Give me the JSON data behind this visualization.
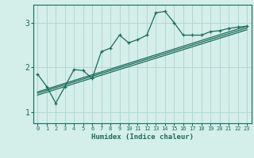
{
  "xlabel": "Humidex (Indice chaleur)",
  "background_color": "#d4eeea",
  "grid_color": "#b0d8d4",
  "line_color": "#1a6b5a",
  "xlim": [
    -0.5,
    23.5
  ],
  "ylim": [
    0.75,
    3.4
  ],
  "xticks": [
    0,
    1,
    2,
    3,
    4,
    5,
    6,
    7,
    8,
    9,
    10,
    11,
    12,
    13,
    14,
    15,
    16,
    17,
    18,
    19,
    20,
    21,
    22,
    23
  ],
  "yticks": [
    1,
    2,
    3
  ],
  "zigzag_x": [
    0,
    1,
    2,
    3,
    4,
    5,
    6,
    7,
    8,
    9,
    10,
    11,
    12,
    13,
    14,
    15,
    16,
    17,
    18,
    19,
    20,
    21,
    22,
    23
  ],
  "zigzag_y": [
    1.85,
    1.57,
    1.2,
    1.57,
    1.95,
    1.93,
    1.75,
    2.35,
    2.43,
    2.72,
    2.55,
    2.62,
    2.72,
    3.22,
    3.25,
    3.0,
    2.72,
    2.72,
    2.72,
    2.8,
    2.82,
    2.87,
    2.9,
    2.92
  ],
  "line1_x": [
    0,
    23
  ],
  "line1_y": [
    1.45,
    2.92
  ],
  "line2_x": [
    0,
    23
  ],
  "line2_y": [
    1.42,
    2.88
  ],
  "line3_x": [
    0,
    23
  ],
  "line3_y": [
    1.38,
    2.84
  ]
}
